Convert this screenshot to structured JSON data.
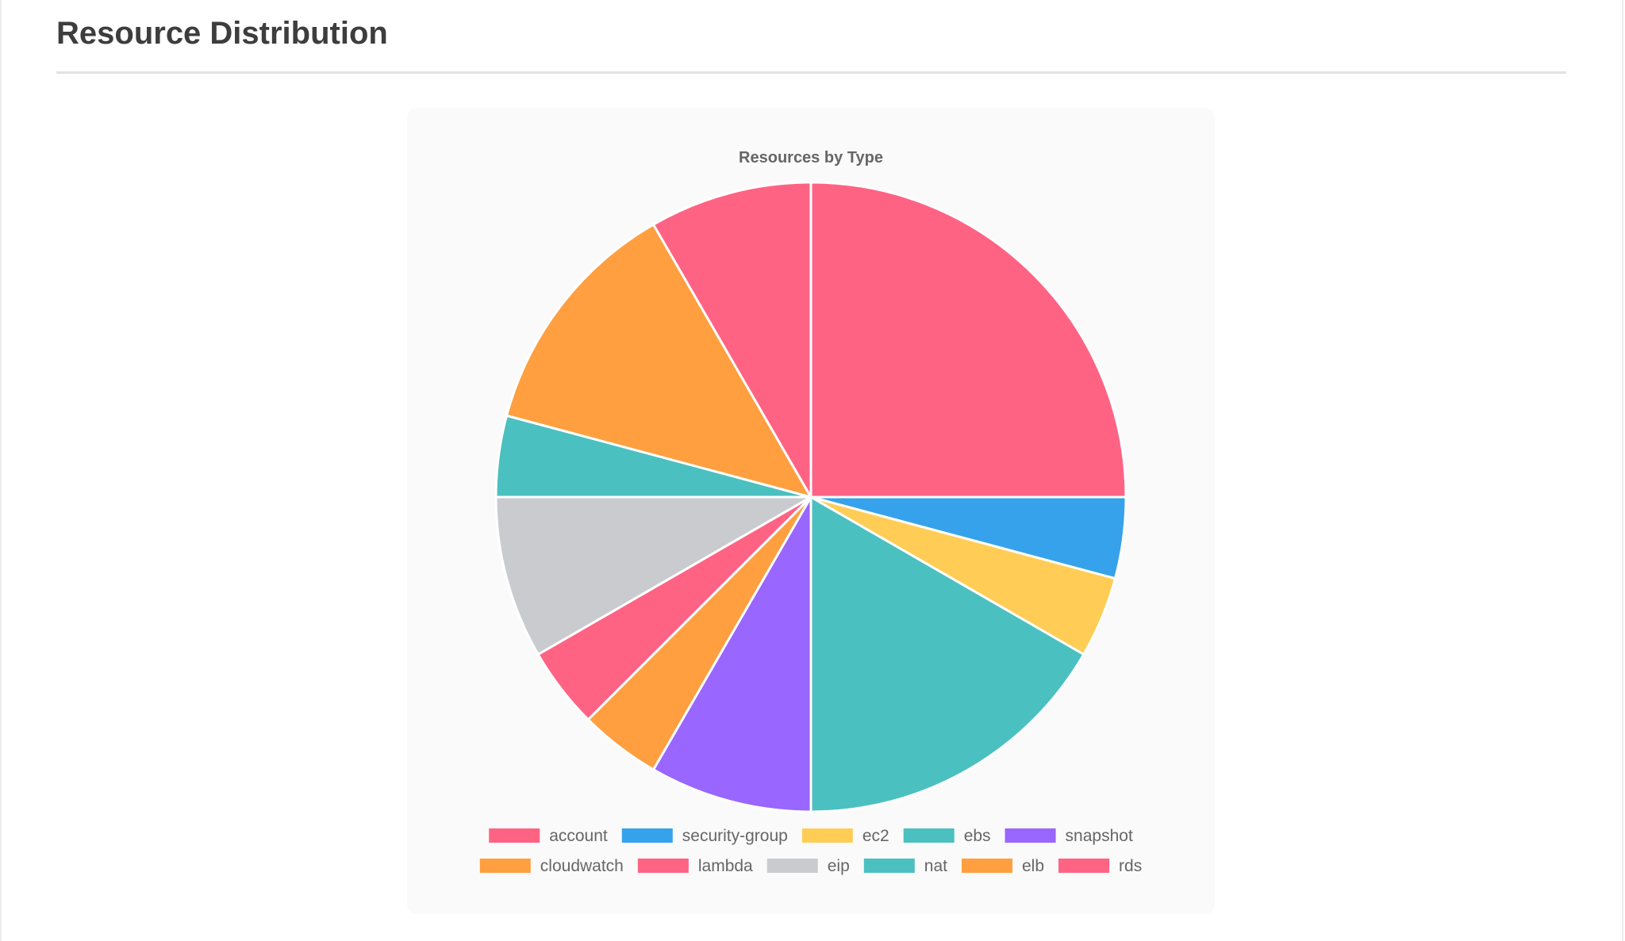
{
  "section": {
    "title": "Resource Distribution"
  },
  "chart_data": {
    "type": "pie",
    "title": "Resources by Type",
    "legend_position": "bottom",
    "categories": [
      "account",
      "security-group",
      "ec2",
      "ebs",
      "snapshot",
      "cloudwatch",
      "lambda",
      "eip",
      "nat",
      "elb",
      "rds"
    ],
    "values": [
      6,
      1,
      1,
      4,
      2,
      1,
      1,
      2,
      1,
      3,
      2
    ],
    "colors": [
      "#ff6384",
      "#36a2eb",
      "#ffcd56",
      "#4bc0c0",
      "#9966ff",
      "#ff9f40",
      "#ff6384",
      "#c9cbcf",
      "#4bc0c0",
      "#ff9f40",
      "#ff6384"
    ]
  }
}
